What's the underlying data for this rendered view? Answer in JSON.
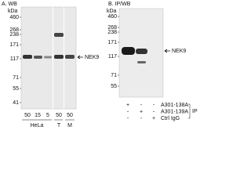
{
  "panel_a": {
    "label": "A. WB",
    "unit": "kDa",
    "markers": [
      "460",
      "268",
      "238",
      "171",
      "117",
      "71",
      "55",
      "41"
    ],
    "lanes": [
      "50",
      "15",
      "5",
      "50",
      "50"
    ],
    "groups": [
      "HeLa",
      "T",
      "M"
    ],
    "target": "NEK9"
  },
  "panel_b": {
    "label": "B. IP/WB",
    "unit": "kDa",
    "markers": [
      "460",
      "268",
      "238",
      "171",
      "117",
      "71",
      "55"
    ],
    "target": "NEK9",
    "rows": [
      {
        "name": "A301-138A",
        "marks": [
          "+",
          "-",
          "-"
        ]
      },
      {
        "name": "A301-139A",
        "marks": [
          "-",
          "+",
          "-"
        ]
      },
      {
        "name": "Ctrl IgG",
        "marks": [
          "-",
          "-",
          "+"
        ]
      }
    ],
    "bracket": "IP"
  }
}
